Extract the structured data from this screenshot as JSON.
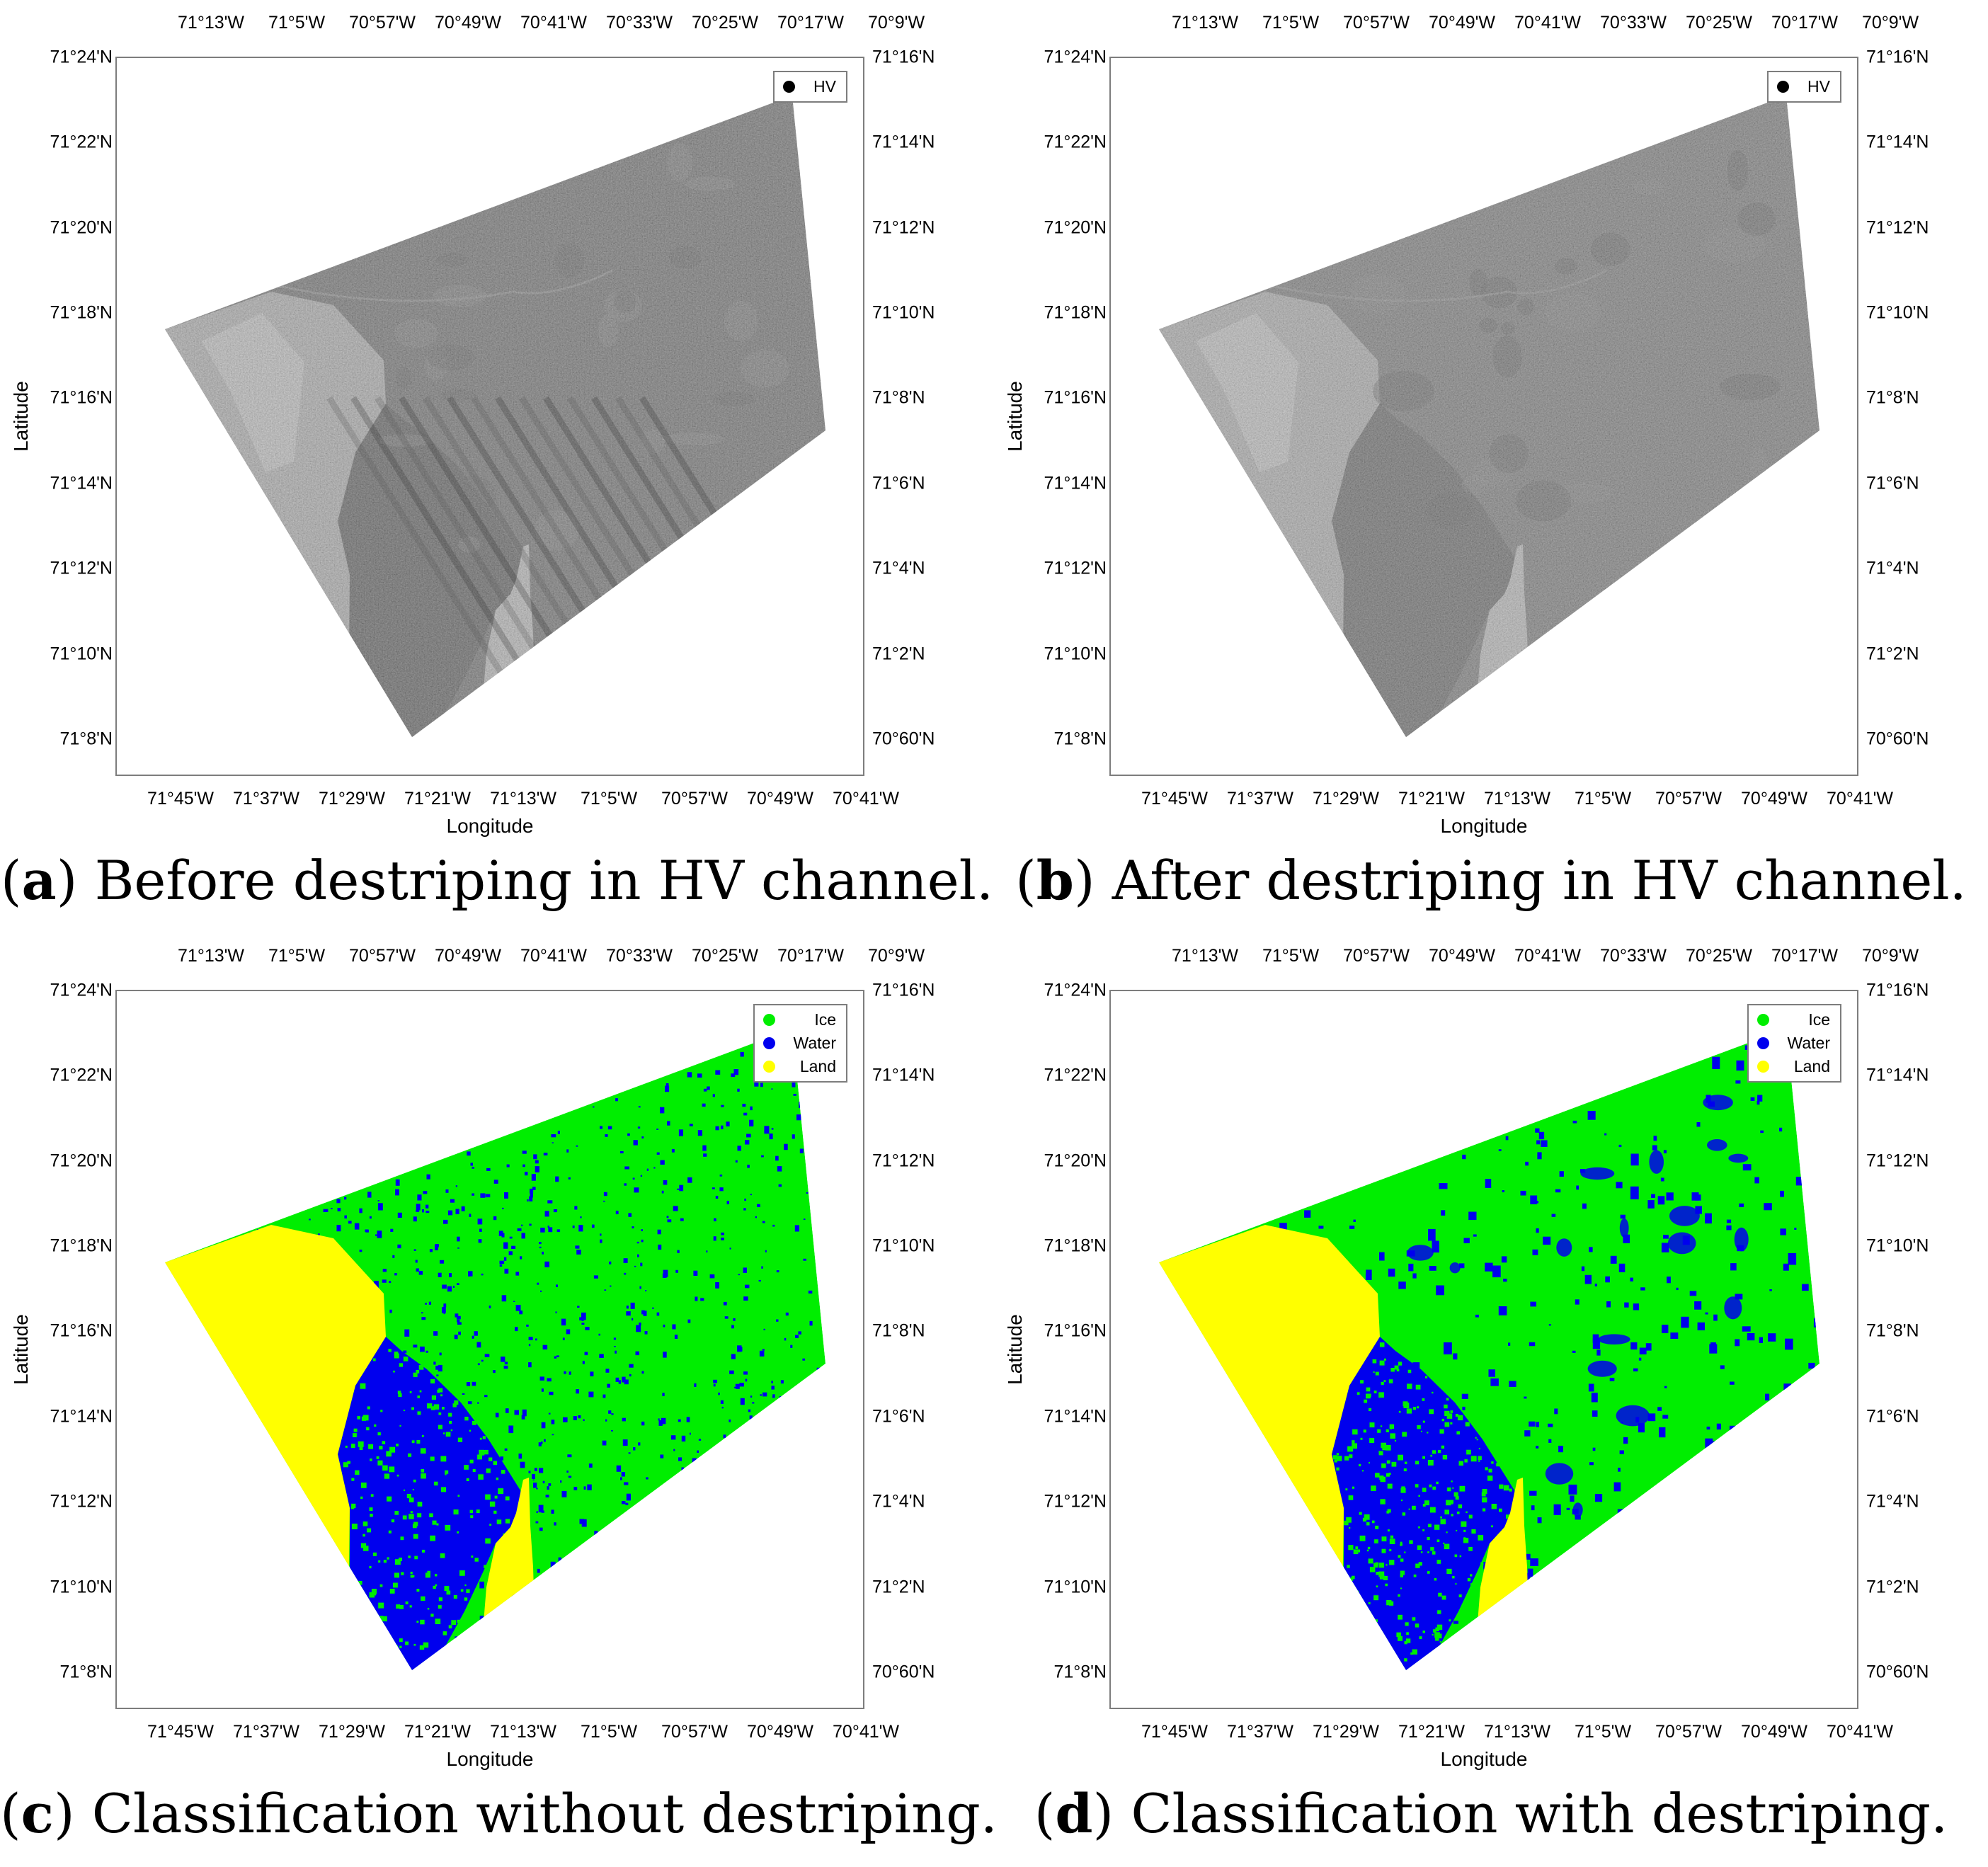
{
  "figure": {
    "longitude_bottom_ticks": [
      "71°45'W",
      "71°37'W",
      "71°29'W",
      "71°21'W",
      "71°13'W",
      "71°5'W",
      "70°57'W",
      "70°49'W",
      "70°41'W"
    ],
    "longitude_top_ticks": [
      "71°13'W",
      "71°5'W",
      "70°57'W",
      "70°49'W",
      "70°41'W",
      "70°33'W",
      "70°25'W",
      "70°17'W",
      "70°9'W"
    ],
    "latitude_left_ticks": [
      "71°24'N",
      "71°22'N",
      "71°20'N",
      "71°18'N",
      "71°16'N",
      "71°14'N",
      "71°12'N",
      "71°10'N",
      "71°8'N"
    ],
    "latitude_right_ticks": [
      "71°16'N",
      "71°14'N",
      "71°12'N",
      "71°10'N",
      "71°8'N",
      "71°6'N",
      "71°4'N",
      "71°2'N",
      "70°60'N"
    ],
    "xlabel": "Longitude",
    "ylabel": "Latitude",
    "colors": {
      "ice": "#00ee00",
      "water": "#0000ee",
      "land": "#ffff00",
      "hv_marker": "#000000",
      "axis": "#7d7d7d"
    }
  },
  "panels": [
    {
      "id": "a",
      "letter": "a",
      "caption": "Before destriping in HV channel.",
      "kind": "sar",
      "legend": [
        {
          "label": "HV",
          "color": "#000000"
        }
      ]
    },
    {
      "id": "b",
      "letter": "b",
      "caption": "After destriping in HV channel.",
      "kind": "sar",
      "legend": [
        {
          "label": "HV",
          "color": "#000000"
        }
      ]
    },
    {
      "id": "c",
      "letter": "c",
      "caption": "Classification without destriping.",
      "kind": "class",
      "legend": [
        {
          "label": "Ice",
          "color": "#00ee00"
        },
        {
          "label": "Water",
          "color": "#0000ee"
        },
        {
          "label": "Land",
          "color": "#ffff00"
        }
      ]
    },
    {
      "id": "d",
      "letter": "d",
      "caption": "Classification with destriping.",
      "kind": "class",
      "legend": [
        {
          "label": "Ice",
          "color": "#00ee00"
        },
        {
          "label": "Water",
          "color": "#0000ee"
        },
        {
          "label": "Land",
          "color": "#ffff00"
        }
      ]
    }
  ]
}
